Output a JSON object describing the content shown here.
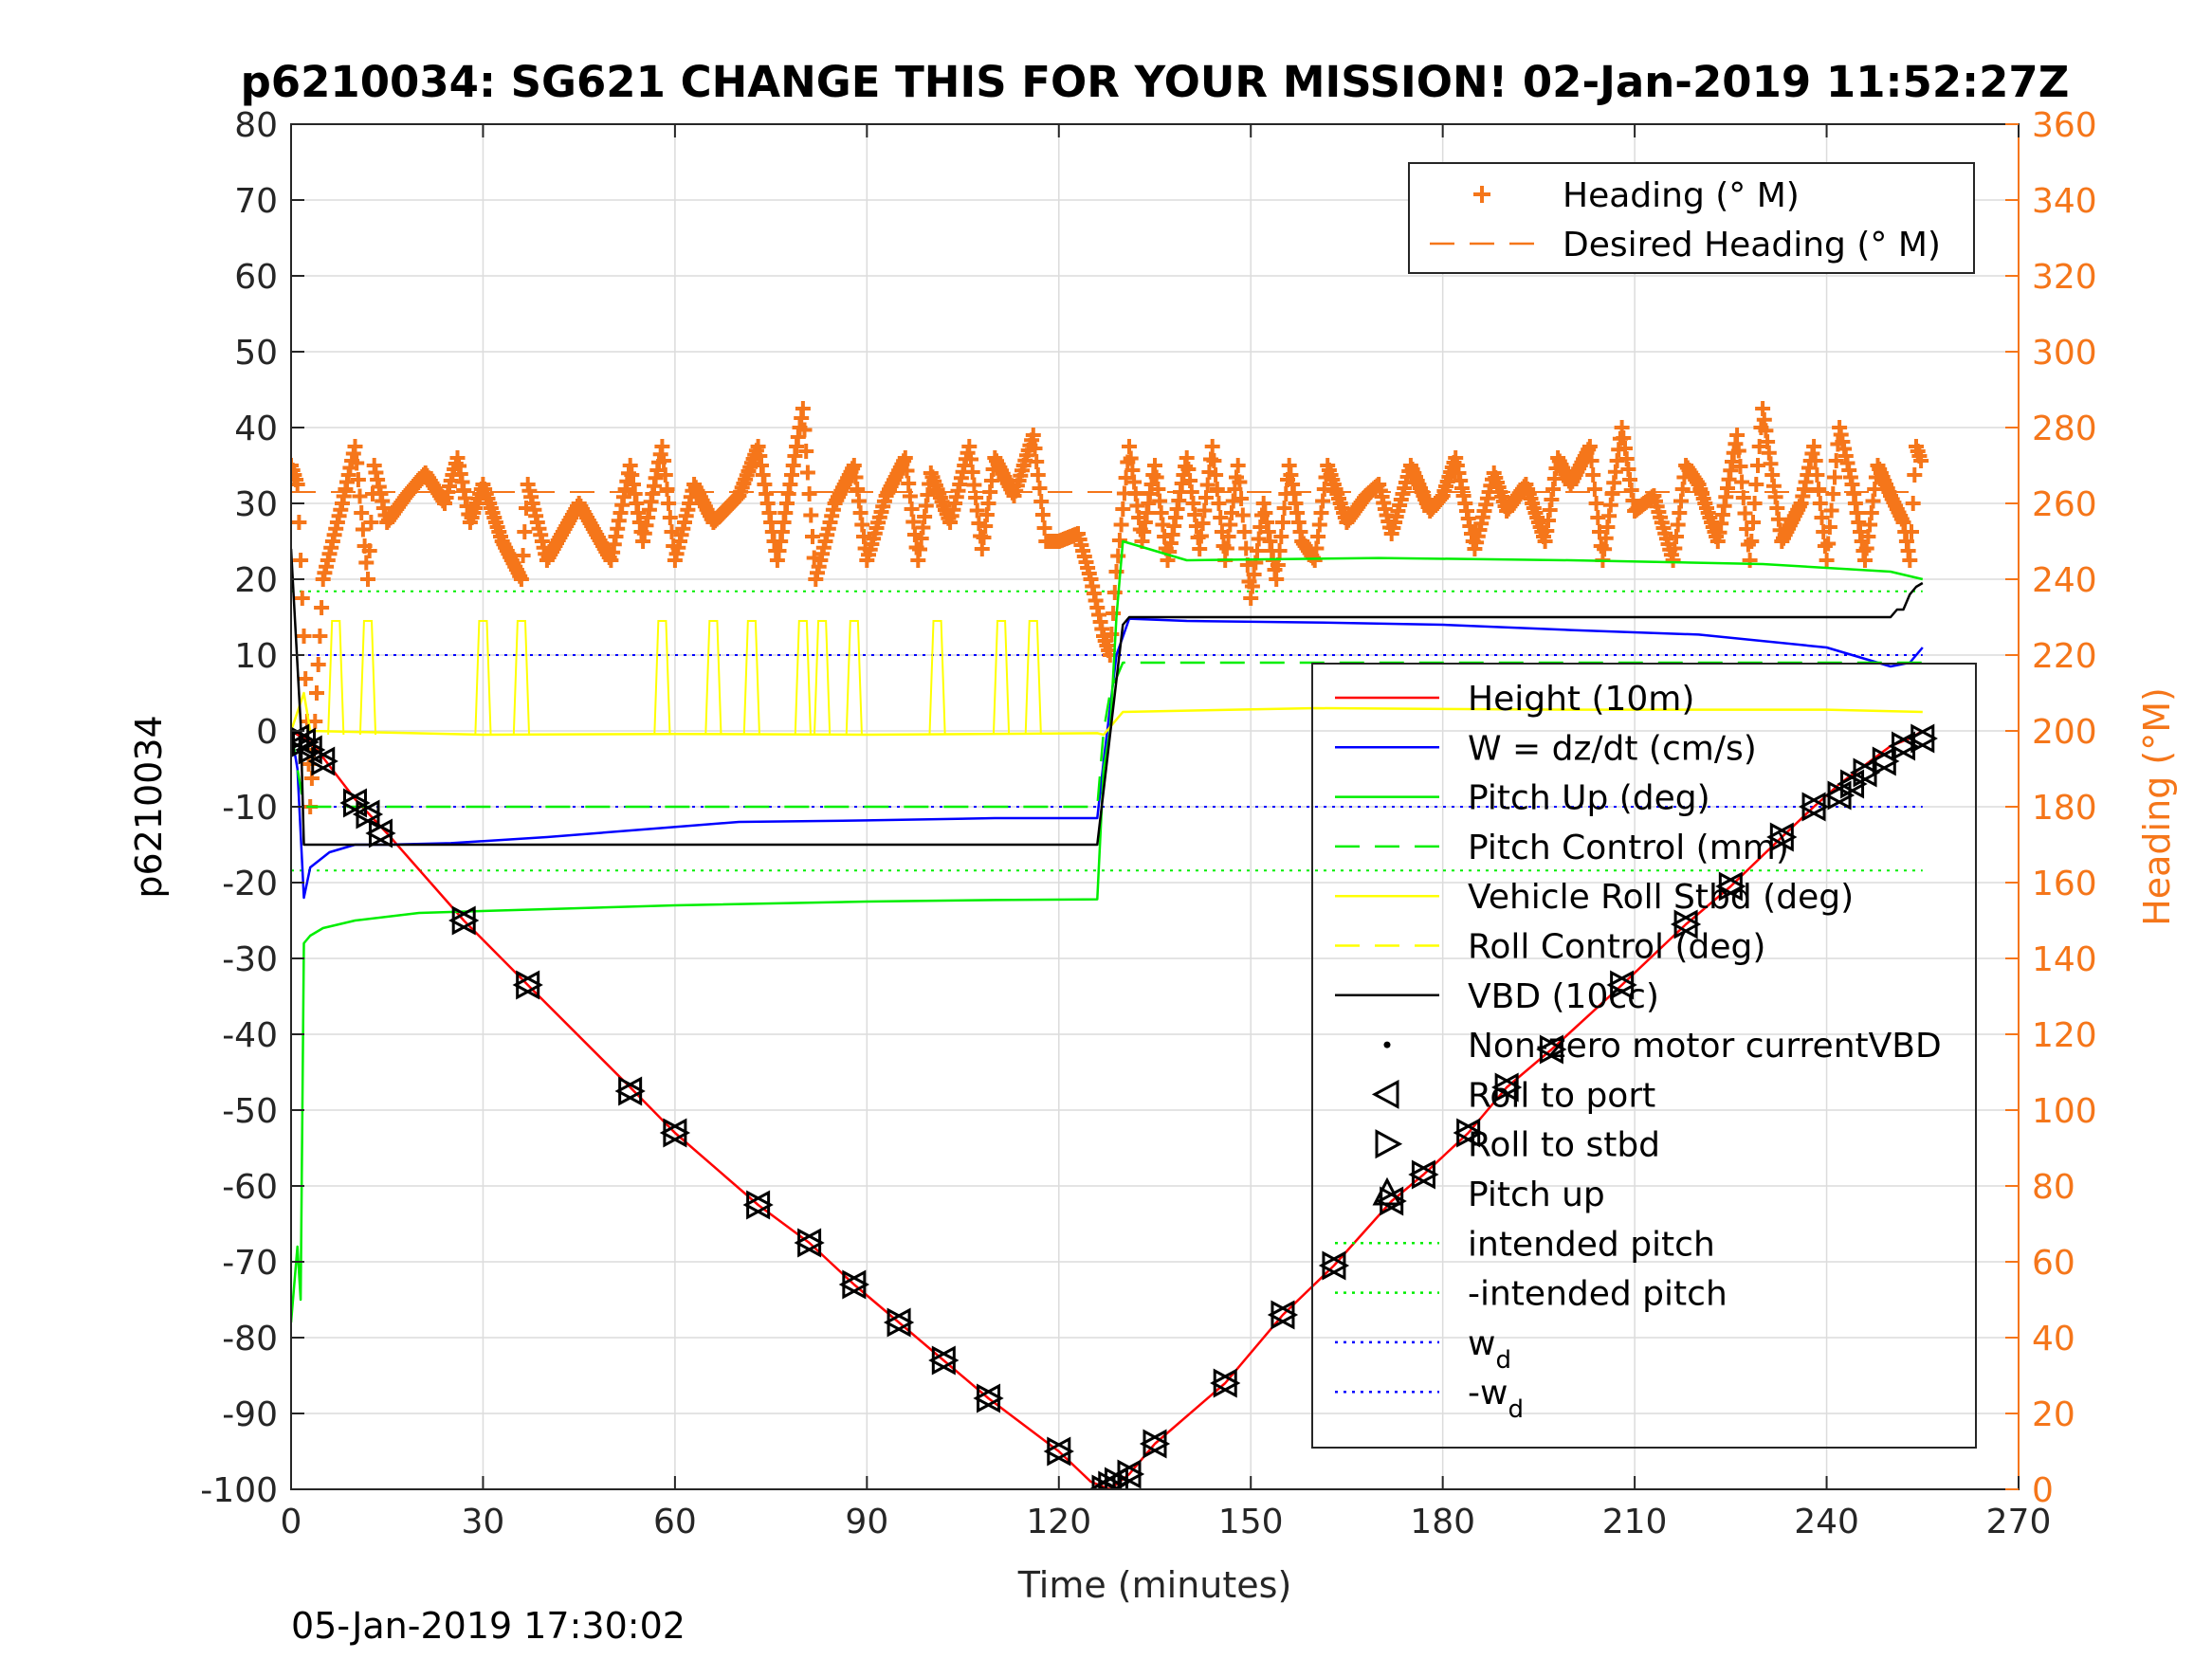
{
  "chart_data": {
    "type": "line",
    "title": "p6210034: SG621 CHANGE THIS FOR YOUR MISSION! 02-Jan-2019 11:52:27Z",
    "xlabel": "Time (minutes)",
    "ylabel": "p6210034",
    "y2label": "Heading (°M)",
    "footer": "05-Jan-2019 17:30:02",
    "xlim": [
      0,
      270
    ],
    "ylim": [
      -100,
      80
    ],
    "y2lim": [
      0,
      360
    ],
    "xticks": [
      0,
      30,
      60,
      90,
      120,
      150,
      180,
      210,
      240,
      270
    ],
    "yticks": [
      -100,
      -90,
      -80,
      -70,
      -60,
      -50,
      -40,
      -30,
      -20,
      -10,
      0,
      10,
      20,
      30,
      40,
      50,
      60,
      70,
      80
    ],
    "y2ticks": [
      0,
      20,
      40,
      60,
      80,
      100,
      120,
      140,
      160,
      180,
      200,
      220,
      240,
      260,
      280,
      300,
      320,
      340,
      360
    ],
    "grid": true,
    "colors": {
      "height": "#ff0000",
      "w": "#0000ff",
      "pitch": "#00ee00",
      "roll": "#ffff00",
      "vbd": "#000000",
      "heading": "#f5761a",
      "markers": "#000000"
    },
    "legend_top": {
      "placement": "top-right",
      "entries": [
        {
          "label": "Heading (° M)",
          "style": "plus",
          "color": "#f5761a"
        },
        {
          "label": "Desired Heading (° M)",
          "style": "dash",
          "color": "#f5761a"
        }
      ]
    },
    "legend_main": {
      "placement": "right",
      "entries": [
        {
          "label": "Height (10m)",
          "style": "solid",
          "color": "#ff0000"
        },
        {
          "label": "W = dz/dt (cm/s)",
          "style": "solid",
          "color": "#0000ff"
        },
        {
          "label": "Pitch Up (deg)",
          "style": "solid",
          "color": "#00ee00"
        },
        {
          "label": "Pitch Control (mm)",
          "style": "dash",
          "color": "#00ee00"
        },
        {
          "label": "Vehicle Roll Stbd (deg)",
          "style": "solid",
          "color": "#ffff00"
        },
        {
          "label": "Roll Control (deg)",
          "style": "dash",
          "color": "#ffff00"
        },
        {
          "label": "VBD (10cc)",
          "style": "solid",
          "color": "#000000"
        },
        {
          "label": "Non-zero motor currentVBD",
          "style": "dot",
          "color": "#000000"
        },
        {
          "label": "Roll to port",
          "style": "tri-left",
          "color": "#000000"
        },
        {
          "label": "Roll to stbd",
          "style": "tri-right",
          "color": "#000000"
        },
        {
          "label": "Pitch up",
          "style": "tri-up",
          "color": "#000000"
        },
        {
          "label": "intended pitch",
          "style": "dotted",
          "color": "#00ee00"
        },
        {
          "label": "-intended pitch",
          "style": "dotted",
          "color": "#00ee00"
        },
        {
          "label": "w",
          "sub": "d",
          "style": "dotted",
          "color": "#0000ff"
        },
        {
          "label": "-w",
          "sub": "d",
          "style": "dotted",
          "color": "#0000ff"
        }
      ]
    },
    "reference_lines": {
      "intended_pitch": 18.4,
      "neg_intended_pitch": -18.4,
      "w_d": 10,
      "neg_w_d": -10,
      "desired_heading": 263
    },
    "series": [
      {
        "name": "Height (10m)",
        "x": [
          0,
          1,
          3,
          5,
          10,
          15,
          27,
          37,
          53,
          60,
          73,
          81,
          88,
          95,
          102,
          109,
          120,
          125,
          128,
          131,
          135,
          146,
          155,
          163,
          172,
          177,
          184,
          190,
          197,
          208,
          218,
          225,
          233,
          238,
          242,
          246,
          250,
          253,
          255
        ],
        "y": [
          0,
          -0.5,
          -1.5,
          -3.5,
          -9,
          -13.5,
          -25,
          -33.5,
          -47,
          -53,
          -62.5,
          -67.5,
          -73,
          -78,
          -83,
          -88,
          -95,
          -99,
          -100,
          -98,
          -94,
          -86,
          -77,
          -70.5,
          -62,
          -58.5,
          -53,
          -47,
          -42,
          -33.5,
          -25.5,
          -20.5,
          -14,
          -10,
          -7,
          -4.5,
          -2,
          -1,
          0
        ]
      },
      {
        "name": "W = dz/dt (cm/s)",
        "x": [
          0,
          1,
          2,
          3,
          6,
          10,
          15,
          25,
          40,
          55,
          70,
          90,
          110,
          126,
          127,
          129,
          131,
          140,
          160,
          180,
          200,
          220,
          240,
          250,
          253,
          255
        ],
        "y": [
          0,
          -5,
          -22,
          -18,
          -16,
          -15,
          -15,
          -14.8,
          -14,
          -13,
          -12,
          -11.8,
          -11.5,
          -11.5,
          -4,
          10,
          14.8,
          14.5,
          14.3,
          14,
          13.3,
          12.7,
          11,
          8.5,
          9,
          11
        ]
      },
      {
        "name": "Pitch Up (deg)",
        "x": [
          0,
          1,
          1.5,
          2,
          3,
          5,
          10,
          20,
          40,
          60,
          90,
          110,
          126,
          127,
          128,
          129,
          130,
          140,
          170,
          200,
          230,
          250,
          255
        ],
        "y": [
          -78,
          -68,
          -75,
          -28,
          -27,
          -26,
          -25,
          -24,
          -23.5,
          -23,
          -22.5,
          -22.3,
          -22.2,
          -5,
          0,
          15,
          25,
          22.5,
          22.8,
          22.5,
          22,
          21,
          20
        ]
      },
      {
        "name": "Pitch Control (mm)",
        "x": [
          0,
          2,
          3,
          126,
          127,
          128,
          130,
          255
        ],
        "y": [
          0,
          -10,
          -10,
          -10,
          0,
          5,
          9,
          9
        ]
      },
      {
        "name": "Vehicle Roll Stbd (deg)",
        "x": [
          0,
          2,
          3,
          30,
          60,
          90,
          126,
          127,
          130,
          160,
          200,
          240,
          255
        ],
        "y": [
          0,
          5,
          0,
          -0.5,
          -0.4,
          -0.5,
          -0.3,
          -0.5,
          2.5,
          3,
          2.8,
          2.8,
          2.5
        ]
      },
      {
        "name": "VBD (10cc)",
        "x": [
          0,
          1.5,
          2,
          125.5,
          126,
          130,
          131,
          250,
          251,
          252,
          253,
          254,
          255
        ],
        "y": [
          24,
          1,
          -15,
          -15,
          -15,
          14,
          15,
          15,
          16,
          16,
          18,
          19,
          19.5
        ]
      }
    ],
    "roll_control_spikes_x": [
      7,
      12,
      30,
      36,
      58,
      66,
      72,
      80,
      83,
      88,
      101,
      111,
      116
    ],
    "heading_series": {
      "name": "Heading (° M)",
      "axis": "y2",
      "x": [
        0,
        1,
        2,
        3,
        4,
        5,
        8,
        10,
        12,
        13,
        15,
        18,
        21,
        24,
        26,
        28,
        30,
        33,
        36,
        37,
        40,
        45,
        50,
        53,
        55,
        58,
        60,
        63,
        66,
        70,
        73,
        76,
        78,
        80,
        82,
        85,
        88,
        90,
        93,
        96,
        98,
        100,
        103,
        106,
        108,
        110,
        113,
        116,
        118,
        120,
        123,
        125,
        127,
        128,
        129,
        131,
        133,
        135,
        137,
        140,
        142,
        144,
        146,
        148,
        150,
        152,
        154,
        156,
        158,
        160,
        162,
        165,
        168,
        170,
        172,
        175,
        178,
        180,
        182,
        185,
        188,
        190,
        193,
        196,
        198,
        200,
        203,
        205,
        208,
        210,
        213,
        216,
        218,
        220,
        223,
        226,
        228,
        230,
        233,
        236,
        238,
        240,
        242,
        244,
        246,
        248,
        250,
        252,
        253,
        254,
        255
      ],
      "y": [
        270,
        265,
        225,
        180,
        210,
        240,
        260,
        275,
        240,
        270,
        255,
        262,
        268,
        260,
        272,
        255,
        265,
        250,
        240,
        265,
        245,
        260,
        245,
        270,
        250,
        275,
        245,
        265,
        255,
        262,
        275,
        245,
        265,
        285,
        240,
        260,
        270,
        245,
        262,
        272,
        245,
        268,
        255,
        275,
        248,
        272,
        262,
        278,
        250,
        250,
        252,
        240,
        225,
        220,
        242,
        275,
        250,
        270,
        245,
        272,
        248,
        275,
        245,
        270,
        235,
        260,
        240,
        270,
        250,
        245,
        270,
        255,
        262,
        265,
        252,
        270,
        258,
        262,
        272,
        248,
        268,
        258,
        265,
        250,
        272,
        265,
        275,
        245,
        280,
        258,
        262,
        245,
        270,
        265,
        250,
        278,
        245,
        285,
        250,
        260,
        275,
        245,
        280,
        265,
        245,
        270,
        262,
        255,
        245,
        275,
        270
      ]
    },
    "markers": {
      "x": [
        1,
        2,
        3,
        5,
        10,
        12,
        14,
        27,
        37,
        53,
        60,
        73,
        81,
        88,
        95,
        102,
        109,
        120,
        127,
        128,
        129,
        131,
        135,
        146,
        155,
        163,
        172,
        177,
        184,
        190,
        197,
        208,
        218,
        225,
        233,
        238,
        242,
        244,
        246,
        249,
        252,
        255
      ],
      "y": [
        -1,
        -1.5,
        -2.5,
        -4,
        -9.5,
        -11,
        -13.5,
        -25,
        -33.5,
        -47.5,
        -53,
        -62.5,
        -67.5,
        -73,
        -78,
        -83,
        -88,
        -95,
        -100,
        -99.5,
        -99,
        -98,
        -94,
        -86,
        -77,
        -70.5,
        -62,
        -58.5,
        -53,
        -47,
        -42,
        -33.5,
        -25.5,
        -20.5,
        -14,
        -10,
        -8.5,
        -7,
        -5.5,
        -4,
        -2,
        -1
      ]
    }
  }
}
